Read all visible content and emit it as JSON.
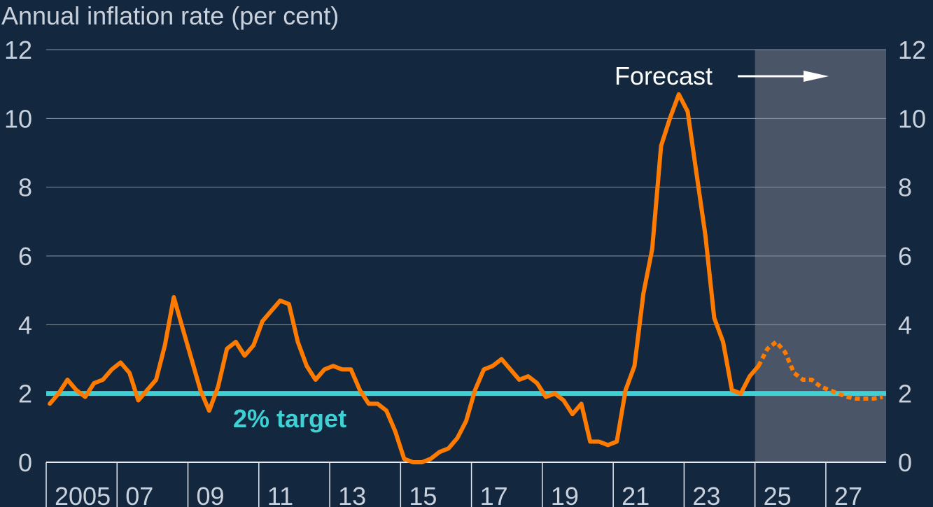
{
  "chart_data": {
    "type": "line",
    "ylabel": "Annual inflation rate (per cent)",
    "ylim": [
      0,
      12
    ],
    "yticks": [
      0,
      2,
      4,
      6,
      8,
      10,
      12
    ],
    "xlim": [
      2004.5,
      2028.2
    ],
    "x_tick_positions": [
      2004.5,
      2006.5,
      2008.5,
      2010.5,
      2012.5,
      2014.5,
      2016.5,
      2018.5,
      2020.5,
      2022.5,
      2024.5,
      2026.5
    ],
    "x_tick_labels": [
      "2005",
      "07",
      "09",
      "11",
      "13",
      "15",
      "17",
      "19",
      "21",
      "23",
      "25",
      "27"
    ],
    "forecast_start": 2024.5,
    "forecast_label": "Forecast",
    "target": {
      "value": 2,
      "label": "2% target",
      "color": "#3fd0d4"
    },
    "colors": {
      "background": "#13273f",
      "series": "#ff7b00",
      "forecast_shade": "#4a5668",
      "text": "#c9d1dc",
      "grid": "#8a96a6"
    },
    "series": [
      {
        "style": "solid",
        "x": [
          2004.6,
          2004.85,
          2005.1,
          2005.35,
          2005.6,
          2005.85,
          2006.1,
          2006.35,
          2006.6,
          2006.85,
          2007.1,
          2007.35,
          2007.6,
          2007.85,
          2008.1,
          2008.35,
          2008.6,
          2008.85,
          2009.1,
          2009.35,
          2009.6,
          2009.85,
          2010.1,
          2010.35,
          2010.6,
          2010.85,
          2011.1,
          2011.35,
          2011.6,
          2011.85,
          2012.1,
          2012.35,
          2012.6,
          2012.85,
          2013.1,
          2013.35,
          2013.6,
          2013.85,
          2014.1,
          2014.35,
          2014.6,
          2014.85,
          2015.1,
          2015.35,
          2015.6,
          2015.85,
          2016.1,
          2016.35,
          2016.6,
          2016.85,
          2017.1,
          2017.35,
          2017.6,
          2017.85,
          2018.1,
          2018.35,
          2018.6,
          2018.85,
          2019.1,
          2019.35,
          2019.6,
          2019.85,
          2020.1,
          2020.35,
          2020.6,
          2020.85,
          2021.1,
          2021.35,
          2021.6,
          2021.85,
          2022.1,
          2022.35,
          2022.6,
          2022.85,
          2023.1,
          2023.35,
          2023.6,
          2023.85,
          2024.1,
          2024.35,
          2024.6
        ],
        "y": [
          1.7,
          2.0,
          2.4,
          2.1,
          1.9,
          2.3,
          2.4,
          2.7,
          2.9,
          2.6,
          1.8,
          2.1,
          2.4,
          3.4,
          4.8,
          3.9,
          3.0,
          2.1,
          1.5,
          2.2,
          3.3,
          3.5,
          3.1,
          3.4,
          4.1,
          4.4,
          4.7,
          4.6,
          3.5,
          2.8,
          2.4,
          2.7,
          2.8,
          2.7,
          2.7,
          2.1,
          1.7,
          1.7,
          1.5,
          0.9,
          0.1,
          0.0,
          0.0,
          0.1,
          0.3,
          0.4,
          0.7,
          1.2,
          2.1,
          2.7,
          2.8,
          3.0,
          2.7,
          2.4,
          2.5,
          2.3,
          1.9,
          2.0,
          1.8,
          1.4,
          1.7,
          0.6,
          0.6,
          0.5,
          0.6,
          2.1,
          2.8,
          4.9,
          6.2,
          9.2,
          10.0,
          10.7,
          10.2,
          8.4,
          6.6,
          4.2,
          3.5,
          2.1,
          2.0,
          2.5,
          2.8
        ]
      },
      {
        "style": "dotted",
        "x": [
          2024.6,
          2024.85,
          2025.1,
          2025.35,
          2025.6,
          2025.85,
          2026.1,
          2026.35,
          2026.6,
          2026.85,
          2027.1,
          2027.35,
          2027.6,
          2027.85,
          2028.1
        ],
        "y": [
          2.8,
          3.3,
          3.5,
          3.2,
          2.6,
          2.4,
          2.4,
          2.2,
          2.1,
          2.0,
          1.9,
          1.85,
          1.85,
          1.85,
          1.9
        ]
      }
    ]
  }
}
